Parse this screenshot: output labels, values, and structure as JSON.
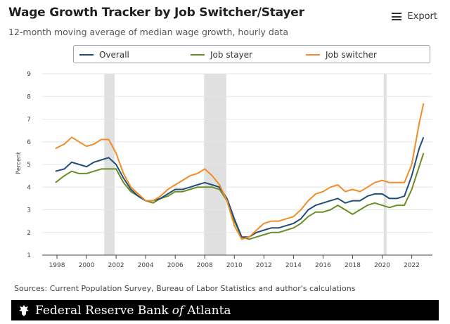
{
  "header": {
    "title": "Wage Growth Tracker by Job Switcher/Stayer",
    "subtitle": "12-month moving average of median wage growth, hourly data",
    "export_label": "Export"
  },
  "footer": {
    "source": "Sources: Current Population Survey, Bureau of Labor Statistics and author's calculations",
    "bank_name_prefix": "Federal Reserve Bank",
    "bank_name_of": "of",
    "bank_name_suffix": "Atlanta"
  },
  "colors": {
    "overall": "#1f4e79",
    "stayer": "#6b8e23",
    "switcher": "#f28c28",
    "recession": "#e0e0e0"
  },
  "chart_data": {
    "type": "line",
    "title": "Wage Growth Tracker by Job Switcher/Stayer",
    "subtitle": "12-month moving average of median wage growth, hourly data",
    "xlabel": "",
    "ylabel": "Percent",
    "xlim": [
      1997.0,
      2023.4
    ],
    "ylim": [
      1,
      9
    ],
    "x_ticks": [
      1998,
      2000,
      2002,
      2004,
      2006,
      2008,
      2010,
      2012,
      2014,
      2016,
      2018,
      2020,
      2022
    ],
    "y_ticks": [
      1,
      2,
      3,
      4,
      5,
      6,
      7,
      8,
      9
    ],
    "recessions": [
      [
        2001.2,
        2001.9
      ],
      [
        2007.95,
        2009.45
      ],
      [
        2020.1,
        2020.3
      ]
    ],
    "legend_position": "top",
    "series": [
      {
        "name": "Overall",
        "x": [
          1997.9,
          1998.5,
          1999,
          1999.5,
          2000,
          2000.5,
          2001,
          2001.5,
          2002,
          2002.5,
          2003,
          2003.5,
          2004,
          2004.5,
          2005,
          2005.5,
          2006,
          2006.5,
          2007,
          2007.5,
          2008,
          2008.5,
          2009,
          2009.5,
          2010,
          2010.5,
          2011,
          2011.5,
          2012,
          2012.5,
          2013,
          2013.5,
          2014,
          2014.5,
          2015,
          2015.5,
          2016,
          2016.5,
          2017,
          2017.5,
          2018,
          2018.5,
          2019,
          2019.5,
          2020,
          2020.5,
          2021,
          2021.5,
          2022,
          2022.5,
          2022.8
        ],
        "values": [
          4.7,
          4.8,
          5.1,
          5.0,
          4.9,
          5.1,
          5.2,
          5.3,
          5.0,
          4.4,
          3.9,
          3.6,
          3.4,
          3.4,
          3.5,
          3.7,
          3.9,
          3.9,
          4.0,
          4.1,
          4.2,
          4.1,
          4.0,
          3.5,
          2.6,
          1.8,
          1.8,
          2.0,
          2.1,
          2.2,
          2.2,
          2.3,
          2.4,
          2.6,
          3.0,
          3.2,
          3.3,
          3.4,
          3.5,
          3.3,
          3.4,
          3.4,
          3.6,
          3.7,
          3.7,
          3.5,
          3.5,
          3.6,
          4.5,
          5.7,
          6.2
        ]
      },
      {
        "name": "Job stayer",
        "x": [
          1997.9,
          1998.5,
          1999,
          1999.5,
          2000,
          2000.5,
          2001,
          2001.5,
          2002,
          2002.5,
          2003,
          2003.5,
          2004,
          2004.5,
          2005,
          2005.5,
          2006,
          2006.5,
          2007,
          2007.5,
          2008,
          2008.5,
          2009,
          2009.5,
          2010,
          2010.5,
          2011,
          2011.5,
          2012,
          2012.5,
          2013,
          2013.5,
          2014,
          2014.5,
          2015,
          2015.5,
          2016,
          2016.5,
          2017,
          2017.5,
          2018,
          2018.5,
          2019,
          2019.5,
          2020,
          2020.5,
          2021,
          2021.5,
          2022,
          2022.5,
          2022.8
        ],
        "values": [
          4.2,
          4.5,
          4.7,
          4.6,
          4.6,
          4.7,
          4.8,
          4.8,
          4.8,
          4.2,
          3.8,
          3.6,
          3.4,
          3.3,
          3.5,
          3.6,
          3.8,
          3.8,
          3.9,
          4.0,
          4.0,
          4.0,
          3.9,
          3.4,
          2.5,
          1.8,
          1.7,
          1.8,
          1.9,
          2.0,
          2.0,
          2.1,
          2.2,
          2.4,
          2.7,
          2.9,
          2.9,
          3.0,
          3.2,
          3.0,
          2.8,
          3.0,
          3.2,
          3.3,
          3.2,
          3.1,
          3.2,
          3.2,
          3.9,
          4.9,
          5.5
        ]
      },
      {
        "name": "Job switcher",
        "x": [
          1997.9,
          1998.5,
          1999,
          1999.5,
          2000,
          2000.5,
          2001,
          2001.5,
          2002,
          2002.5,
          2003,
          2003.5,
          2004,
          2004.5,
          2005,
          2005.5,
          2006,
          2006.5,
          2007,
          2007.5,
          2008,
          2008.5,
          2009,
          2009.5,
          2010,
          2010.5,
          2011,
          2011.5,
          2012,
          2012.5,
          2013,
          2013.5,
          2014,
          2014.5,
          2015,
          2015.5,
          2016,
          2016.5,
          2017,
          2017.5,
          2018,
          2018.5,
          2019,
          2019.5,
          2020,
          2020.5,
          2021,
          2021.5,
          2022,
          2022.5,
          2022.8
        ],
        "values": [
          5.7,
          5.9,
          6.2,
          6.0,
          5.8,
          5.9,
          6.1,
          6.1,
          5.5,
          4.6,
          4.0,
          3.7,
          3.4,
          3.4,
          3.6,
          3.9,
          4.1,
          4.3,
          4.5,
          4.6,
          4.8,
          4.5,
          4.1,
          3.4,
          2.3,
          1.7,
          1.8,
          2.1,
          2.4,
          2.5,
          2.5,
          2.6,
          2.7,
          3.0,
          3.4,
          3.7,
          3.8,
          4.0,
          4.1,
          3.8,
          3.9,
          3.8,
          4.0,
          4.2,
          4.3,
          4.2,
          4.2,
          4.2,
          5.0,
          6.8,
          7.7
        ]
      }
    ]
  }
}
